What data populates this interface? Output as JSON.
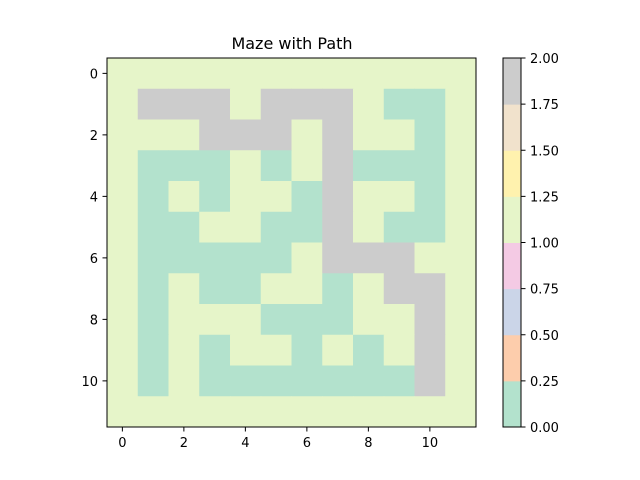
{
  "chart_data": [
    {
      "type": "heatmap",
      "title": "Maze with Path",
      "xlabel": "",
      "ylabel": "",
      "x_ticks": [
        "0",
        "2",
        "4",
        "6",
        "8",
        "10"
      ],
      "y_ticks": [
        "0",
        "2",
        "4",
        "6",
        "8",
        "10"
      ],
      "grid": false,
      "legend": "colorbar-right",
      "matrix": [
        [
          1,
          1,
          1,
          1,
          1,
          1,
          1,
          1,
          1,
          1,
          1,
          1
        ],
        [
          1,
          2,
          2,
          2,
          1,
          2,
          2,
          2,
          1,
          0,
          0,
          1
        ],
        [
          1,
          1,
          1,
          2,
          2,
          2,
          1,
          2,
          1,
          1,
          0,
          1
        ],
        [
          1,
          0,
          0,
          0,
          1,
          0,
          1,
          2,
          0,
          0,
          0,
          1
        ],
        [
          1,
          0,
          1,
          0,
          1,
          1,
          0,
          2,
          1,
          1,
          0,
          1
        ],
        [
          1,
          0,
          0,
          1,
          1,
          0,
          0,
          2,
          1,
          0,
          0,
          1
        ],
        [
          1,
          0,
          0,
          0,
          0,
          0,
          1,
          2,
          2,
          2,
          1,
          1
        ],
        [
          1,
          0,
          1,
          0,
          0,
          1,
          1,
          0,
          1,
          2,
          2,
          1
        ],
        [
          1,
          0,
          1,
          1,
          1,
          0,
          0,
          0,
          1,
          1,
          2,
          1
        ],
        [
          1,
          0,
          1,
          0,
          1,
          1,
          0,
          1,
          0,
          1,
          2,
          1
        ],
        [
          1,
          0,
          1,
          0,
          0,
          0,
          0,
          0,
          0,
          0,
          2,
          1
        ],
        [
          1,
          1,
          1,
          1,
          1,
          1,
          1,
          1,
          1,
          1,
          1,
          1
        ]
      ]
    },
    {
      "type": "colorbar",
      "range": [
        0,
        2
      ],
      "ticks": [
        "0.00",
        "0.25",
        "0.50",
        "0.75",
        "1.00",
        "1.25",
        "1.50",
        "1.75",
        "2.00"
      ],
      "colors": [
        "#b3e2cd",
        "#fdcdac",
        "#cbd5e8",
        "#f4cae4",
        "#e6f5c9",
        "#fff2ae",
        "#f1e2cc",
        "#cccccc"
      ]
    }
  ]
}
